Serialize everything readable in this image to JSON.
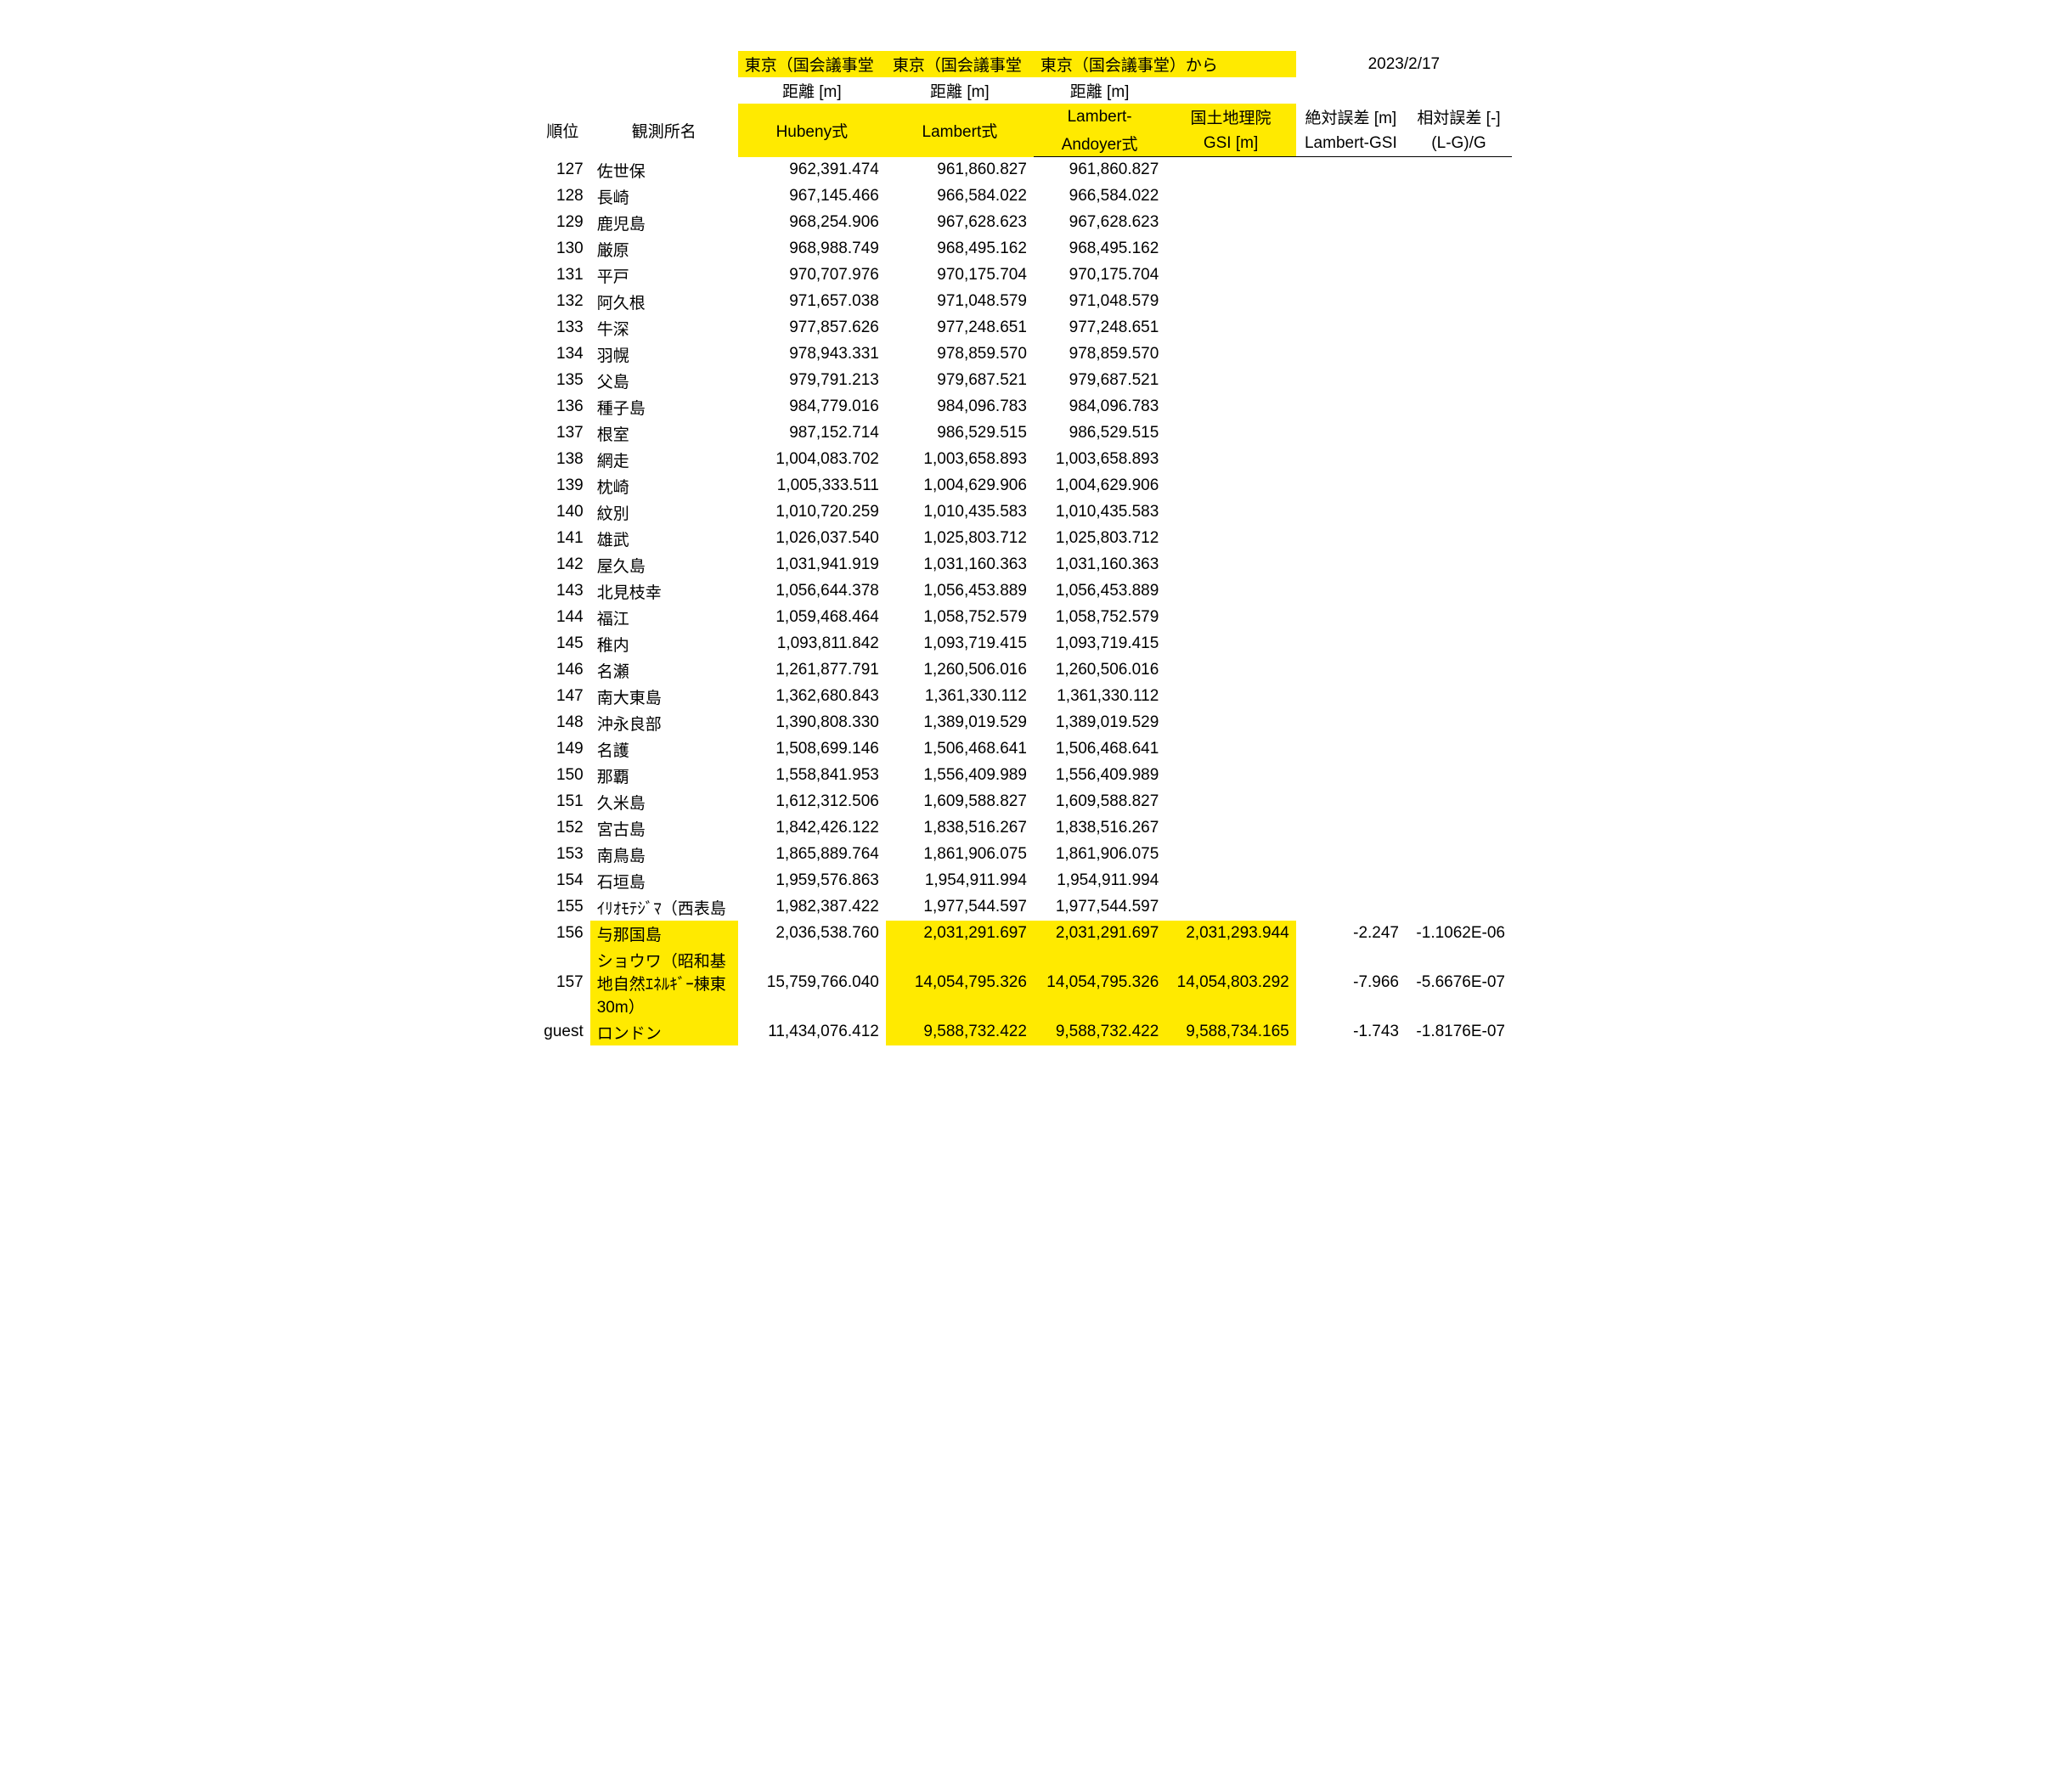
{
  "date": "2023/2/17",
  "top_header": {
    "t1": "東京（国会議事堂",
    "t2": "東京（国会議事堂",
    "t3": "東京（国会議事堂）から"
  },
  "sub_header": {
    "d1": "距離 [m]",
    "d2": "距離 [m]",
    "d3": "距離 [m]"
  },
  "col_header": {
    "rank": "順位",
    "name": "観測所名",
    "hubeny": "Hubeny式",
    "lambert": "Lambert式",
    "andoyer1": "Lambert-",
    "andoyer2": "Andoyer式",
    "gsi1": "国土地理院",
    "gsi2": "GSI [m]",
    "abs1": "絶対誤差 [m]",
    "abs2": "Lambert-GSI",
    "rel1": "相対誤差 [-]",
    "rel2": "(L-G)/G"
  },
  "highlight_color": "#ffea00",
  "rows": [
    {
      "rank": "127",
      "name": "佐世保",
      "h": "962,391.474",
      "l": "961,860.827",
      "a": "961,860.827"
    },
    {
      "rank": "128",
      "name": "長崎",
      "h": "967,145.466",
      "l": "966,584.022",
      "a": "966,584.022"
    },
    {
      "rank": "129",
      "name": "鹿児島",
      "h": "968,254.906",
      "l": "967,628.623",
      "a": "967,628.623"
    },
    {
      "rank": "130",
      "name": "厳原",
      "h": "968,988.749",
      "l": "968,495.162",
      "a": "968,495.162"
    },
    {
      "rank": "131",
      "name": "平戸",
      "h": "970,707.976",
      "l": "970,175.704",
      "a": "970,175.704"
    },
    {
      "rank": "132",
      "name": "阿久根",
      "h": "971,657.038",
      "l": "971,048.579",
      "a": "971,048.579"
    },
    {
      "rank": "133",
      "name": "牛深",
      "h": "977,857.626",
      "l": "977,248.651",
      "a": "977,248.651"
    },
    {
      "rank": "134",
      "name": "羽幌",
      "h": "978,943.331",
      "l": "978,859.570",
      "a": "978,859.570"
    },
    {
      "rank": "135",
      "name": "父島",
      "h": "979,791.213",
      "l": "979,687.521",
      "a": "979,687.521"
    },
    {
      "rank": "136",
      "name": "種子島",
      "h": "984,779.016",
      "l": "984,096.783",
      "a": "984,096.783"
    },
    {
      "rank": "137",
      "name": "根室",
      "h": "987,152.714",
      "l": "986,529.515",
      "a": "986,529.515"
    },
    {
      "rank": "138",
      "name": "網走",
      "h": "1,004,083.702",
      "l": "1,003,658.893",
      "a": "1,003,658.893"
    },
    {
      "rank": "139",
      "name": "枕崎",
      "h": "1,005,333.511",
      "l": "1,004,629.906",
      "a": "1,004,629.906"
    },
    {
      "rank": "140",
      "name": "紋別",
      "h": "1,010,720.259",
      "l": "1,010,435.583",
      "a": "1,010,435.583"
    },
    {
      "rank": "141",
      "name": "雄武",
      "h": "1,026,037.540",
      "l": "1,025,803.712",
      "a": "1,025,803.712"
    },
    {
      "rank": "142",
      "name": "屋久島",
      "h": "1,031,941.919",
      "l": "1,031,160.363",
      "a": "1,031,160.363"
    },
    {
      "rank": "143",
      "name": "北見枝幸",
      "h": "1,056,644.378",
      "l": "1,056,453.889",
      "a": "1,056,453.889"
    },
    {
      "rank": "144",
      "name": "福江",
      "h": "1,059,468.464",
      "l": "1,058,752.579",
      "a": "1,058,752.579"
    },
    {
      "rank": "145",
      "name": "稚内",
      "h": "1,093,811.842",
      "l": "1,093,719.415",
      "a": "1,093,719.415"
    },
    {
      "rank": "146",
      "name": "名瀬",
      "h": "1,261,877.791",
      "l": "1,260,506.016",
      "a": "1,260,506.016"
    },
    {
      "rank": "147",
      "name": "南大東島",
      "h": "1,362,680.843",
      "l": "1,361,330.112",
      "a": "1,361,330.112"
    },
    {
      "rank": "148",
      "name": "沖永良部",
      "h": "1,390,808.330",
      "l": "1,389,019.529",
      "a": "1,389,019.529"
    },
    {
      "rank": "149",
      "name": "名護",
      "h": "1,508,699.146",
      "l": "1,506,468.641",
      "a": "1,506,468.641"
    },
    {
      "rank": "150",
      "name": "那覇",
      "h": "1,558,841.953",
      "l": "1,556,409.989",
      "a": "1,556,409.989"
    },
    {
      "rank": "151",
      "name": "久米島",
      "h": "1,612,312.506",
      "l": "1,609,588.827",
      "a": "1,609,588.827"
    },
    {
      "rank": "152",
      "name": "宮古島",
      "h": "1,842,426.122",
      "l": "1,838,516.267",
      "a": "1,838,516.267"
    },
    {
      "rank": "153",
      "name": "南鳥島",
      "h": "1,865,889.764",
      "l": "1,861,906.075",
      "a": "1,861,906.075"
    },
    {
      "rank": "154",
      "name": "石垣島",
      "h": "1,959,576.863",
      "l": "1,954,911.994",
      "a": "1,954,911.994"
    },
    {
      "rank": "155",
      "name": "ｲﾘｵﾓﾃｼﾞﾏ（西表島",
      "h": "1,982,387.422",
      "l": "1,977,544.597",
      "a": "1,977,544.597"
    }
  ],
  "row156": {
    "rank": "156",
    "name": "与那国島",
    "h": "2,036,538.760",
    "l": "2,031,291.697",
    "a": "2,031,291.697",
    "g": "2,031,293.944",
    "abs": "-2.247",
    "rel": "-1.1062E-06"
  },
  "row157": {
    "rank": "157",
    "name": "ショウワ（昭和基地自然ｴﾈﾙｷﾞｰ棟東30m）",
    "h": "15,759,766.040",
    "l": "14,054,795.326",
    "a": "14,054,795.326",
    "g": "14,054,803.292",
    "abs": "-7.966",
    "rel": "-5.6676E-07"
  },
  "rowguest": {
    "rank": "guest",
    "name": "ロンドン",
    "h": "11,434,076.412",
    "l": "9,588,732.422",
    "a": "9,588,732.422",
    "g": "9,588,734.165",
    "abs": "-1.743",
    "rel": "-1.8176E-07"
  }
}
